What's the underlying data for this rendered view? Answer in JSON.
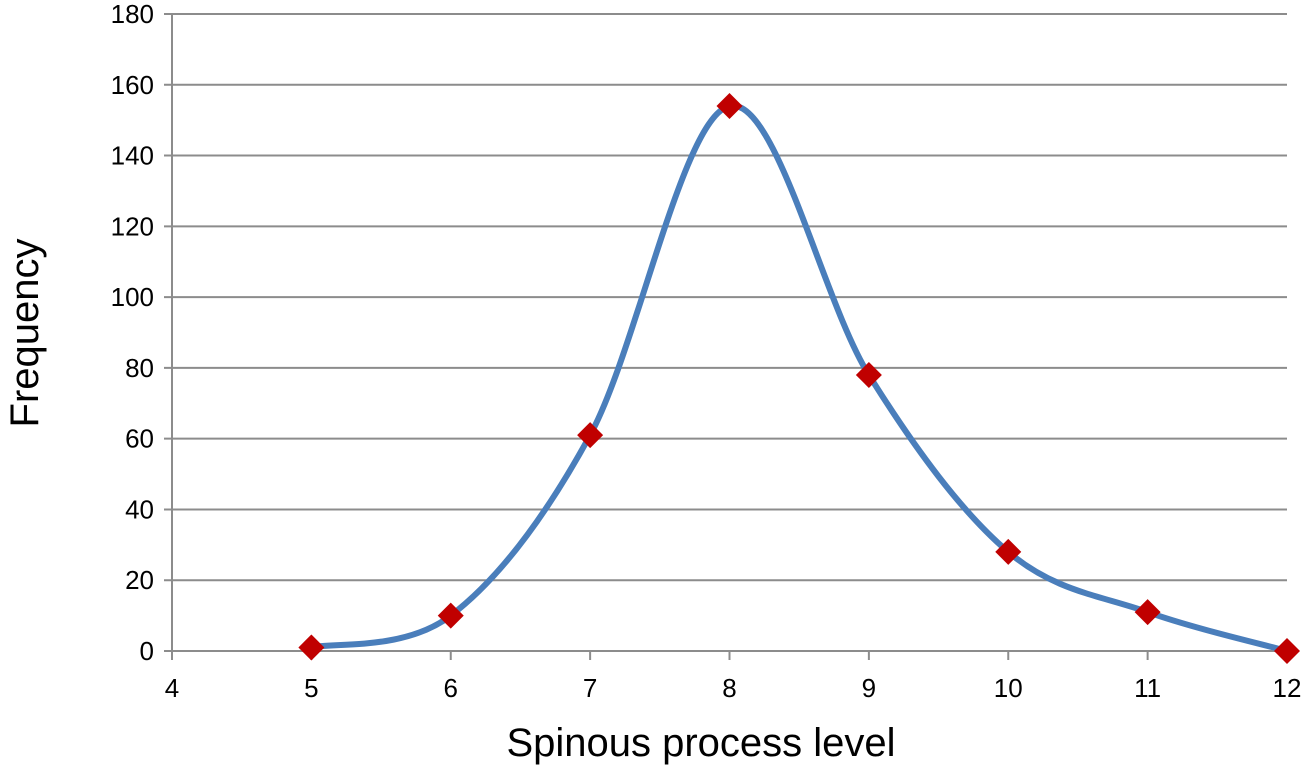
{
  "chart_data": {
    "type": "line",
    "title": "",
    "xlabel": "Spinous process level",
    "ylabel": "Frequency",
    "xlim": [
      4,
      12
    ],
    "ylim": [
      0,
      180
    ],
    "x_ticks": [
      4,
      5,
      6,
      7,
      8,
      9,
      10,
      11,
      12
    ],
    "y_ticks": [
      0,
      20,
      40,
      60,
      80,
      100,
      120,
      140,
      160,
      180
    ],
    "grid": "horizontal",
    "legend": "none",
    "smooth": true,
    "series": [
      {
        "x": [
          5,
          6,
          7,
          8,
          9,
          10,
          11,
          12
        ],
        "y": [
          1,
          10,
          61,
          154,
          78,
          28,
          11,
          0
        ],
        "line_color": "#4a7ebb",
        "marker": "diamond",
        "marker_color": "#c00000"
      }
    ]
  }
}
